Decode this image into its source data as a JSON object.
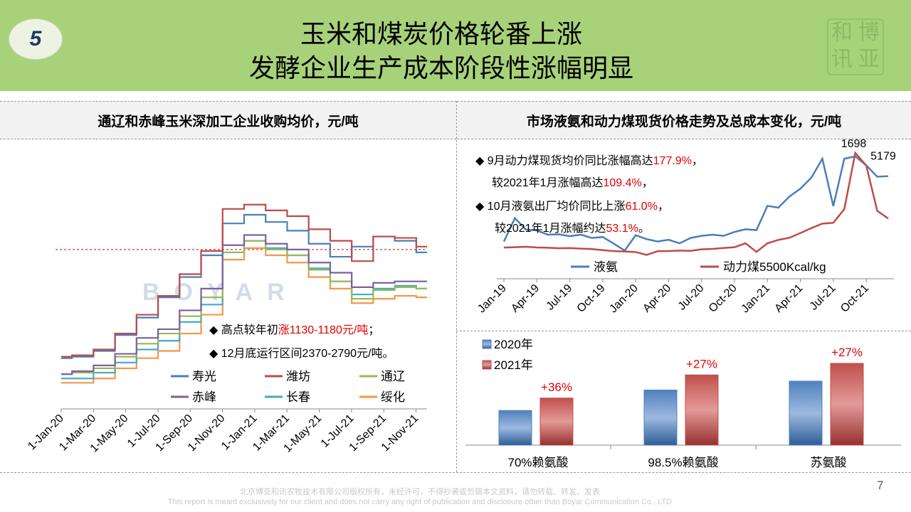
{
  "header": {
    "badge": "5",
    "title_line1": "玉米和煤炭价格轮番上涨",
    "title_line2": "发酵企业生产成本阶段性涨幅明显",
    "seal_chars": [
      "和",
      "博",
      "讯",
      "亚"
    ]
  },
  "left_panel": {
    "title": "通辽和赤峰玉米深加工企业收购均价，元/吨",
    "watermark": "BOYAR",
    "notes": [
      {
        "pre": "高点较年初",
        "hl": "涨1130-1180元/吨",
        "post": "；"
      },
      {
        "pre": "12月底运行区间2370-2790元/吨。",
        "hl": "",
        "post": ""
      }
    ]
  },
  "right_panel": {
    "title": "市场液氨和动力煤现货价格走势及总成本变化，元/吨",
    "notes": [
      {
        "pre": "9月动力煤现货均价同比涨幅高达",
        "hl": "177.9%",
        "post": "，"
      },
      {
        "pre": "较2021年1月涨幅高达",
        "hl": "109.4%",
        "post": "，"
      },
      {
        "pre": "10月液氨出厂均价同比上涨",
        "hl": "61.0%",
        "post": "，"
      },
      {
        "pre": "较2021年1月涨幅约达",
        "hl": "53.1%",
        "post": "。"
      }
    ]
  },
  "footer": {
    "line1": "北京博亚和讯农牧技术有限公司版权所有，未经许可，不得抄袭或剪辑本文资料，请勿转载、转发、发表",
    "line2": "This report is meant exclusively for our client and does not carry any right of publication and disclosure other than Boyar Communication Co., LTD",
    "page": "7"
  },
  "colors": {
    "header_bg": "#a8d27a",
    "shouguang": "#4a7ebb",
    "weifang": "#be4b48",
    "tongliao": "#98b954",
    "chifeng": "#7d60a0",
    "changchun": "#46aac5",
    "suihua": "#f79646"
  },
  "chart_data": [
    {
      "type": "line",
      "id": "corn",
      "x_ticks": [
        "1-Jan-20",
        "1-Mar-20",
        "1-May-20",
        "1-Jul-20",
        "1-Sep-20",
        "1-Nov-20",
        "1-Jan-21",
        "1-Mar-21",
        "1-May-21",
        "1-Jul-21",
        "1-Sep-21",
        "1-Nov-21"
      ],
      "ylim": [
        1600,
        3200
      ],
      "ref_line": 2700,
      "series": [
        {
          "name": "寿光",
          "color": "#4a7ebb",
          "values": [
            1950,
            1960,
            2000,
            2110,
            2230,
            2370,
            2510,
            2660,
            2880,
            2940,
            2890,
            2830,
            2740,
            2650,
            2720,
            2790,
            2760,
            2680
          ]
        },
        {
          "name": "潍坊",
          "color": "#be4b48",
          "values": [
            1960,
            1970,
            2010,
            2120,
            2250,
            2380,
            2530,
            2690,
            2980,
            3010,
            2970,
            2930,
            2840,
            2760,
            2620,
            2790,
            2780,
            2720
          ]
        },
        {
          "name": "通辽",
          "color": "#98b954",
          "values": [
            1840,
            1850,
            1880,
            1960,
            2050,
            2120,
            2240,
            2370,
            2680,
            2760,
            2700,
            2660,
            2560,
            2480,
            2360,
            2420,
            2440,
            2430
          ]
        },
        {
          "name": "赤峰",
          "color": "#7d60a0",
          "values": [
            1840,
            1860,
            1900,
            1980,
            2090,
            2150,
            2280,
            2430,
            2730,
            2800,
            2740,
            2700,
            2610,
            2540,
            2440,
            2470,
            2480,
            2480
          ]
        },
        {
          "name": "长春",
          "color": "#46aac5",
          "values": [
            1810,
            1810,
            1850,
            1920,
            2010,
            2070,
            2200,
            2320,
            2680,
            2760,
            2710,
            2660,
            2570,
            2480,
            2390,
            2430,
            2450,
            2430
          ]
        },
        {
          "name": "绥化",
          "color": "#f79646",
          "values": [
            1780,
            1780,
            1810,
            1880,
            1950,
            2000,
            2120,
            2250,
            2630,
            2710,
            2660,
            2610,
            2510,
            2430,
            2330,
            2360,
            2380,
            2370
          ]
        }
      ]
    },
    {
      "type": "line",
      "id": "energy",
      "x_ticks": [
        "Jan-19",
        "Apr-19",
        "Jul-19",
        "Oct-19",
        "Jan-20",
        "Apr-20",
        "Jul-20",
        "Oct-20",
        "Jan-21",
        "Apr-21",
        "Jul-21",
        "Oct-21"
      ],
      "annotations": [
        {
          "text": "1698",
          "series": "动力煤5500Kcal/kg",
          "index": 32
        },
        {
          "text": "5179",
          "series": "液氨",
          "index": 33
        }
      ],
      "series": [
        {
          "name": "液氨",
          "color": "#4a7ebb",
          "values": [
            2640,
            3420,
            3040,
            3010,
            2870,
            2880,
            2820,
            2870,
            2760,
            2790,
            2570,
            2340,
            2850,
            2720,
            2640,
            2700,
            2580,
            2760,
            2830,
            2870,
            2830,
            2960,
            3050,
            3020,
            3830,
            3770,
            4140,
            4400,
            4770,
            5400,
            3820,
            5400,
            5480,
            5179,
            4800,
            4820
          ]
        },
        {
          "name": "动力煤5500Kcal/kg",
          "color": "#be4b48",
          "values": [
            590,
            595,
            600,
            592,
            588,
            582,
            584,
            578,
            573,
            560,
            549,
            545,
            538,
            505,
            548,
            550,
            555,
            552,
            570,
            575,
            585,
            595,
            640,
            540,
            640,
            680,
            705,
            760,
            818,
            870,
            880,
            1040,
            1698,
            1550,
            1020,
            930
          ]
        }
      ]
    },
    {
      "type": "bar",
      "id": "cost",
      "categories": [
        "70%赖氨酸",
        "98.5%赖氨酸",
        "苏氨酸"
      ],
      "series": [
        {
          "name": "2020年",
          "color": "#4f81bd",
          "values": [
            0.39,
            0.62,
            0.72
          ]
        },
        {
          "name": "2021年",
          "color": "#c0504d",
          "values": [
            0.53,
            0.79,
            0.92
          ]
        }
      ],
      "labels": [
        "+36%",
        "+27%",
        "+27%"
      ]
    }
  ]
}
